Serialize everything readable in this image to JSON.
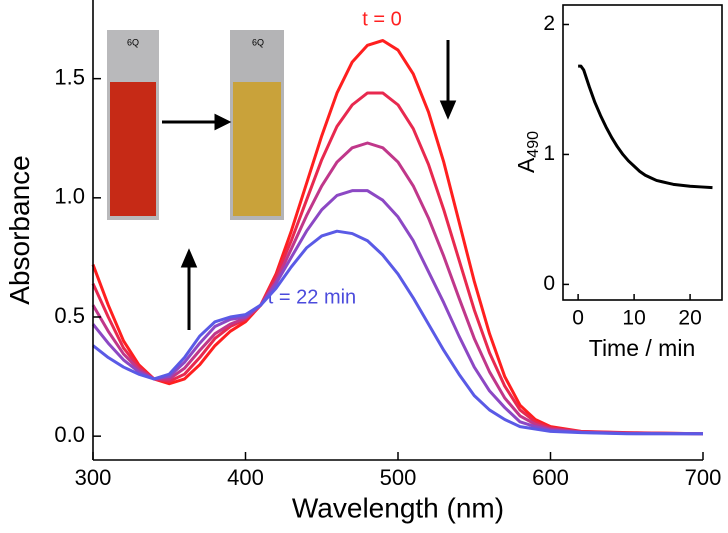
{
  "chart_data": [
    {
      "type": "line",
      "xlabel": "Wavelength (nm)",
      "ylabel": "Absorbance",
      "annotations": [
        "t = 0",
        "t = 22 min"
      ],
      "x": [
        300,
        310,
        320,
        330,
        340,
        350,
        360,
        370,
        380,
        390,
        400,
        410,
        420,
        430,
        440,
        450,
        460,
        470,
        480,
        490,
        500,
        510,
        520,
        530,
        540,
        550,
        560,
        570,
        580,
        590,
        600,
        620,
        650,
        700
      ],
      "series": [
        {
          "color": "#ff1f1f",
          "values": [
            0.72,
            0.55,
            0.4,
            0.3,
            0.24,
            0.22,
            0.24,
            0.3,
            0.38,
            0.44,
            0.48,
            0.55,
            0.68,
            0.86,
            1.06,
            1.26,
            1.44,
            1.57,
            1.64,
            1.66,
            1.62,
            1.52,
            1.36,
            1.15,
            0.9,
            0.65,
            0.43,
            0.25,
            0.13,
            0.07,
            0.04,
            0.02,
            0.015,
            0.01
          ]
        },
        {
          "color": "#e8294f",
          "values": [
            0.64,
            0.5,
            0.37,
            0.29,
            0.24,
            0.23,
            0.26,
            0.33,
            0.41,
            0.46,
            0.49,
            0.55,
            0.67,
            0.82,
            0.99,
            1.16,
            1.3,
            1.39,
            1.44,
            1.44,
            1.39,
            1.29,
            1.14,
            0.95,
            0.74,
            0.53,
            0.35,
            0.21,
            0.11,
            0.06,
            0.035,
            0.019,
            0.014,
            0.01
          ]
        },
        {
          "color": "#c0378a",
          "values": [
            0.55,
            0.44,
            0.345,
            0.28,
            0.24,
            0.24,
            0.285,
            0.36,
            0.43,
            0.47,
            0.495,
            0.55,
            0.65,
            0.785,
            0.925,
            1.05,
            1.15,
            1.21,
            1.23,
            1.21,
            1.15,
            1.05,
            0.915,
            0.755,
            0.58,
            0.41,
            0.27,
            0.16,
            0.085,
            0.05,
            0.03,
            0.0175,
            0.0125,
            0.01
          ]
        },
        {
          "color": "#8c48c4",
          "values": [
            0.47,
            0.39,
            0.32,
            0.27,
            0.24,
            0.25,
            0.31,
            0.39,
            0.46,
            0.49,
            0.5,
            0.55,
            0.64,
            0.75,
            0.86,
            0.95,
            1.01,
            1.03,
            1.03,
            0.99,
            0.92,
            0.82,
            0.69,
            0.56,
            0.42,
            0.29,
            0.19,
            0.12,
            0.06,
            0.04,
            0.025,
            0.016,
            0.011,
            0.01
          ]
        },
        {
          "color": "#5a5ae6",
          "values": [
            0.38,
            0.33,
            0.29,
            0.26,
            0.24,
            0.26,
            0.33,
            0.42,
            0.48,
            0.5,
            0.51,
            0.55,
            0.62,
            0.71,
            0.79,
            0.84,
            0.86,
            0.85,
            0.82,
            0.76,
            0.68,
            0.58,
            0.47,
            0.36,
            0.26,
            0.17,
            0.11,
            0.07,
            0.04,
            0.03,
            0.02,
            0.015,
            0.01,
            0.01
          ]
        }
      ],
      "xlim": [
        300,
        700
      ],
      "xticks": [
        300,
        400,
        500,
        600,
        700
      ],
      "ylim": [
        -0.1,
        1.83
      ],
      "yticks": [
        {
          "value": 0,
          "label": "0.0"
        },
        0.5,
        {
          "value": 1,
          "label": "1.0"
        },
        1.5
      ]
    },
    {
      "type": "line",
      "xlabel": "Time / min",
      "ylabel": "A",
      "ylabel_sub": "490",
      "x": [
        0,
        0.5,
        1,
        2,
        3,
        4,
        5,
        6,
        7,
        8,
        9,
        10,
        11,
        12,
        13,
        14,
        15,
        16,
        17,
        18,
        19,
        20,
        22,
        24
      ],
      "series": [
        {
          "color": "#000000",
          "values": [
            1.68,
            1.68,
            1.65,
            1.52,
            1.4,
            1.3,
            1.21,
            1.13,
            1.06,
            1.0,
            0.95,
            0.91,
            0.87,
            0.84,
            0.82,
            0.8,
            0.79,
            0.78,
            0.77,
            0.765,
            0.76,
            0.755,
            0.75,
            0.745
          ]
        }
      ],
      "xlim": [
        -2.7,
        25.7
      ],
      "xticks": [
        0,
        10,
        20
      ],
      "ylim": [
        -0.12,
        2.15
      ],
      "yticks": [
        0,
        1,
        2
      ]
    }
  ],
  "photos": [
    "6Q",
    "6Q"
  ]
}
